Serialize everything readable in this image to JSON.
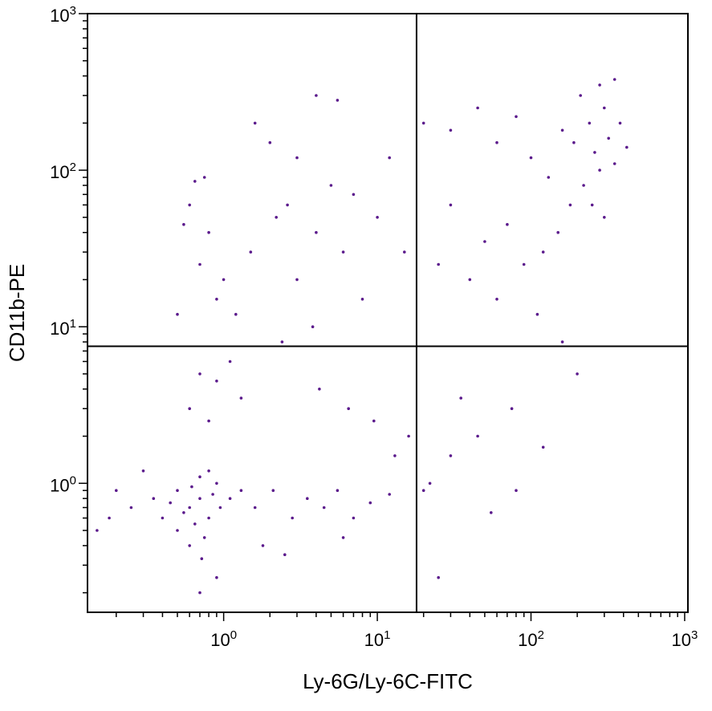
{
  "chart_data": {
    "type": "scatter",
    "xlabel": "Ly-6G/Ly-6C-FITC",
    "ylabel": "CD11b-PE",
    "x_scale": "log",
    "y_scale": "log",
    "xlim": [
      0.13,
      1050
    ],
    "ylim": [
      0.15,
      1000
    ],
    "x_ticks": [
      {
        "value": 1,
        "base": "10",
        "exp": "0"
      },
      {
        "value": 10,
        "base": "10",
        "exp": "1"
      },
      {
        "value": 100,
        "base": "10",
        "exp": "2"
      },
      {
        "value": 1000,
        "base": "10",
        "exp": "3"
      }
    ],
    "y_ticks": [
      {
        "value": 1,
        "base": "10",
        "exp": "0"
      },
      {
        "value": 10,
        "base": "10",
        "exp": "1"
      },
      {
        "value": 100,
        "base": "10",
        "exp": "2"
      },
      {
        "value": 1000,
        "base": "10",
        "exp": "3"
      }
    ],
    "quadrant_gate": {
      "x": 18,
      "y": 7.5
    },
    "point_color": "#5b1a8c",
    "series": [
      {
        "values": [
          [
            0.6,
            0.7
          ],
          [
            0.7,
            0.8
          ],
          [
            0.8,
            0.6
          ],
          [
            0.5,
            0.9
          ],
          [
            0.9,
            1.0
          ],
          [
            0.65,
            0.55
          ],
          [
            0.75,
            0.45
          ],
          [
            0.55,
            0.65
          ],
          [
            0.85,
            0.85
          ],
          [
            0.7,
            1.1
          ],
          [
            0.45,
            0.75
          ],
          [
            0.95,
            0.7
          ],
          [
            0.6,
            0.4
          ],
          [
            0.8,
            1.2
          ],
          [
            0.5,
            0.5
          ],
          [
            1.1,
            0.8
          ],
          [
            0.4,
            0.6
          ],
          [
            0.72,
            0.33
          ],
          [
            0.62,
            0.95
          ],
          [
            1.3,
            0.9
          ],
          [
            0.35,
            0.8
          ],
          [
            1.6,
            0.7
          ],
          [
            2.1,
            0.9
          ],
          [
            2.8,
            0.6
          ],
          [
            3.5,
            0.8
          ],
          [
            4.5,
            0.7
          ],
          [
            5.5,
            0.9
          ],
          [
            7,
            0.6
          ],
          [
            9,
            0.75
          ],
          [
            12,
            0.85
          ],
          [
            0.3,
            1.2
          ],
          [
            0.25,
            0.7
          ],
          [
            0.2,
            0.9
          ],
          [
            0.18,
            0.6
          ],
          [
            0.15,
            0.5
          ],
          [
            1.8,
            0.4
          ],
          [
            2.5,
            0.35
          ],
          [
            6,
            0.45
          ],
          [
            0.9,
            0.25
          ],
          [
            0.7,
            0.2
          ],
          [
            0.8,
            2.5
          ],
          [
            0.6,
            3.0
          ],
          [
            0.7,
            5.0
          ],
          [
            0.9,
            15
          ],
          [
            0.7,
            25
          ],
          [
            0.8,
            40
          ],
          [
            0.6,
            60
          ],
          [
            1.0,
            20
          ],
          [
            1.2,
            12
          ],
          [
            0.75,
            90
          ],
          [
            1.5,
            30
          ],
          [
            2.2,
            50
          ],
          [
            3,
            20
          ],
          [
            4,
            40
          ],
          [
            5,
            80
          ],
          [
            6,
            30
          ],
          [
            8,
            15
          ],
          [
            10,
            50
          ],
          [
            12,
            120
          ],
          [
            15,
            30
          ],
          [
            2,
            150
          ],
          [
            3,
            120
          ],
          [
            4,
            300
          ],
          [
            5.5,
            280
          ],
          [
            1.6,
            200
          ],
          [
            0.55,
            45
          ],
          [
            0.65,
            85
          ],
          [
            2.6,
            60
          ],
          [
            3.8,
            10
          ],
          [
            7,
            70
          ],
          [
            0.5,
            12
          ],
          [
            1.1,
            6
          ],
          [
            2.4,
            8
          ],
          [
            4.2,
            4
          ],
          [
            6.5,
            3
          ],
          [
            9.5,
            2.5
          ],
          [
            13,
            1.5
          ],
          [
            16,
            2.0
          ],
          [
            1.3,
            3.5
          ],
          [
            0.9,
            4.5
          ],
          [
            20,
            200
          ],
          [
            30,
            180
          ],
          [
            45,
            250
          ],
          [
            60,
            150
          ],
          [
            80,
            220
          ],
          [
            100,
            120
          ],
          [
            130,
            90
          ],
          [
            160,
            180
          ],
          [
            190,
            150
          ],
          [
            220,
            80
          ],
          [
            240,
            200
          ],
          [
            260,
            130
          ],
          [
            280,
            100
          ],
          [
            300,
            250
          ],
          [
            320,
            160
          ],
          [
            350,
            110
          ],
          [
            380,
            200
          ],
          [
            420,
            140
          ],
          [
            250,
            60
          ],
          [
            300,
            50
          ],
          [
            210,
            300
          ],
          [
            280,
            350
          ],
          [
            350,
            380
          ],
          [
            180,
            60
          ],
          [
            150,
            40
          ],
          [
            120,
            30
          ],
          [
            90,
            25
          ],
          [
            70,
            45
          ],
          [
            50,
            35
          ],
          [
            40,
            20
          ],
          [
            30,
            60
          ],
          [
            25,
            25
          ],
          [
            60,
            15
          ],
          [
            110,
            12
          ],
          [
            160,
            8
          ],
          [
            200,
            5
          ],
          [
            75,
            3
          ],
          [
            45,
            2
          ],
          [
            30,
            1.5
          ],
          [
            22,
            1.0
          ],
          [
            35,
            3.5
          ],
          [
            55,
            0.65
          ],
          [
            80,
            0.9
          ],
          [
            120,
            1.7
          ],
          [
            25,
            0.25
          ],
          [
            20,
            0.9
          ]
        ]
      }
    ]
  }
}
